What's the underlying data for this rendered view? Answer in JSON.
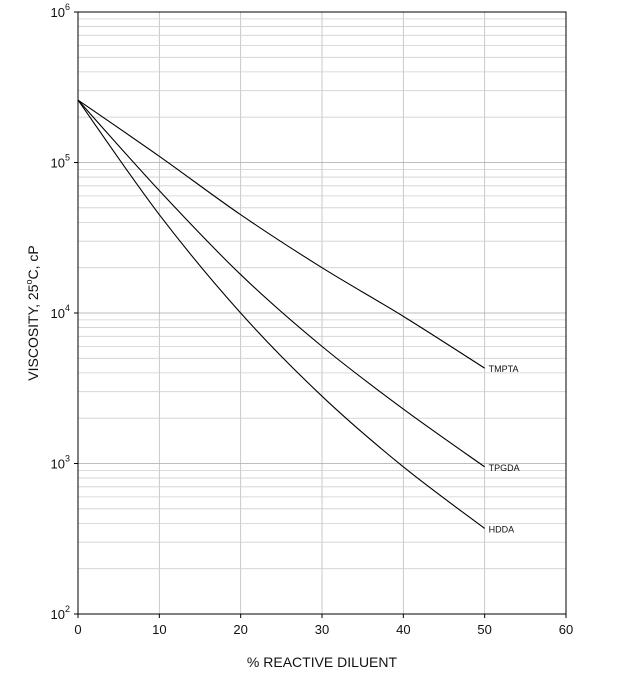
{
  "chart_data": {
    "type": "line",
    "xlabel": "% REACTIVE DILUENT",
    "ylabel": "VISCOSITY, 25oC, cP",
    "ylabel_parts": {
      "before": "VISCOSITY, 25",
      "super": "o",
      "after": "C, cP"
    },
    "xlim": [
      0,
      60
    ],
    "ylim": [
      100,
      1000000
    ],
    "yscale": "log",
    "grid": true,
    "x_ticks": [
      "0",
      "10",
      "20",
      "30",
      "40",
      "50",
      "60"
    ],
    "y_ticks": [
      {
        "base": "10",
        "exp": "2",
        "value": 100
      },
      {
        "base": "10",
        "exp": "3",
        "value": 1000
      },
      {
        "base": "10",
        "exp": "4",
        "value": 10000
      },
      {
        "base": "10",
        "exp": "5",
        "value": 100000
      },
      {
        "base": "10",
        "exp": "6",
        "value": 1000000
      }
    ],
    "series": [
      {
        "name": "TMPTA",
        "x": [
          0,
          10,
          20,
          30,
          40,
          50
        ],
        "values": [
          260000,
          110000,
          45000,
          20000,
          9500,
          4300
        ]
      },
      {
        "name": "TPGDA",
        "x": [
          0,
          10,
          20,
          30,
          40,
          50
        ],
        "values": [
          260000,
          65000,
          18000,
          6000,
          2300,
          950
        ]
      },
      {
        "name": "HDDA",
        "x": [
          0,
          10,
          20,
          30,
          40,
          50
        ],
        "values": [
          260000,
          45000,
          10000,
          2800,
          950,
          370
        ]
      }
    ]
  }
}
